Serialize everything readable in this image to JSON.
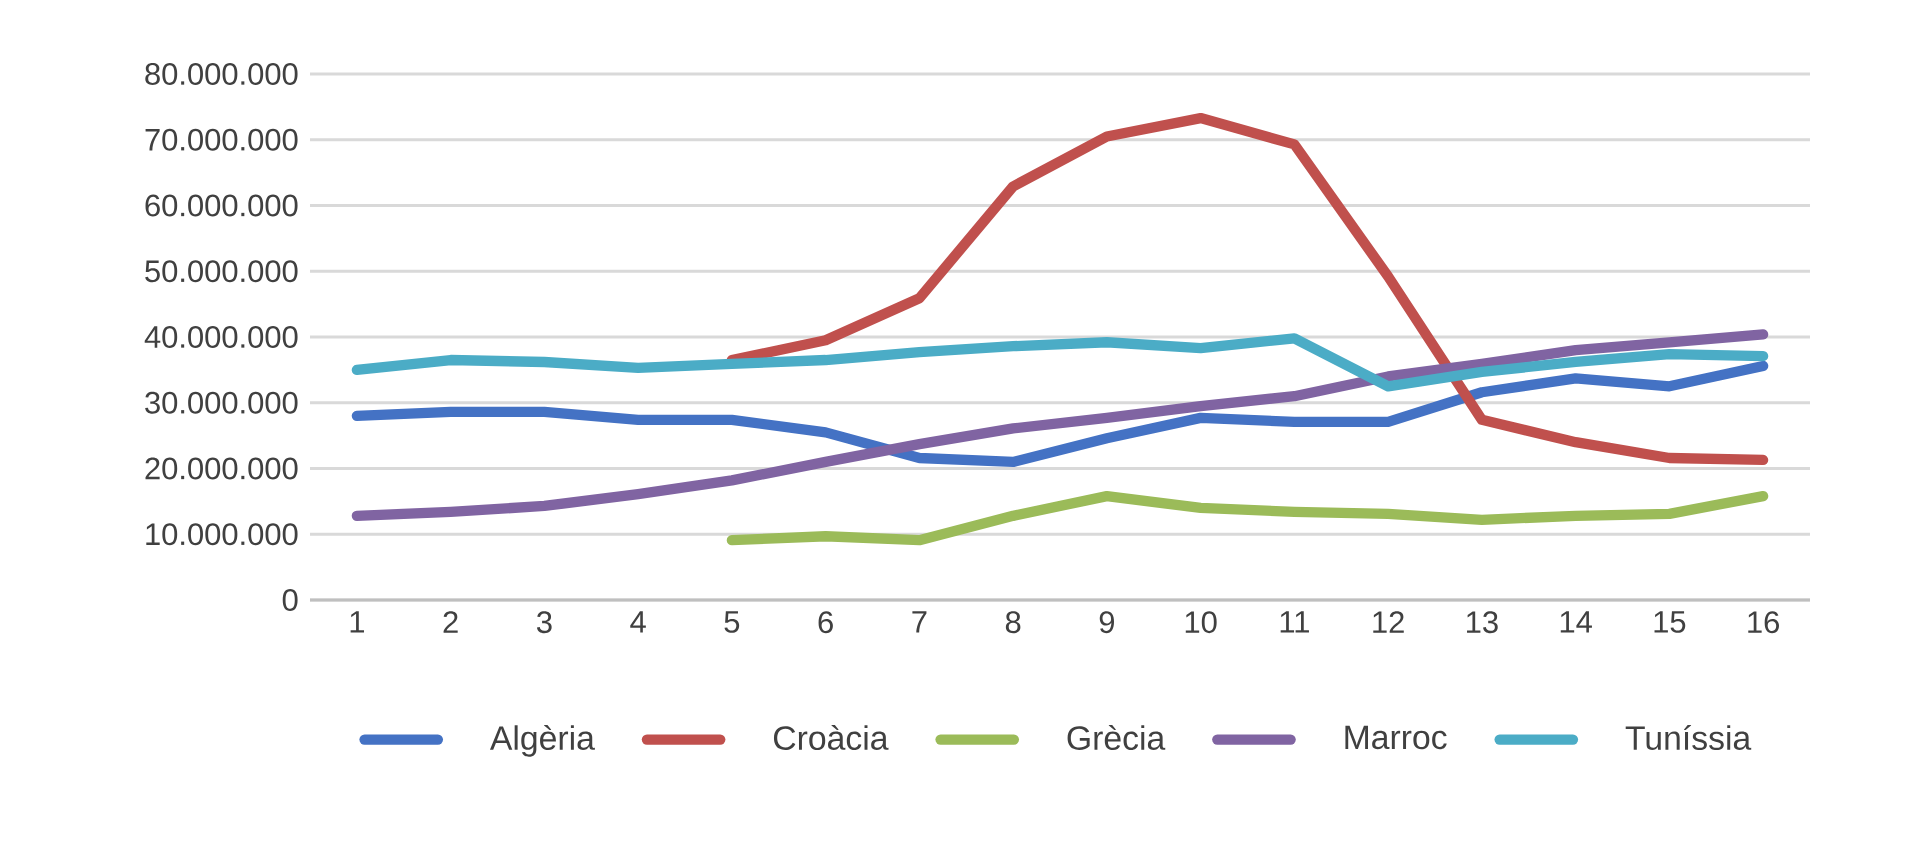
{
  "chart_data": {
    "type": "line",
    "categories": [
      "1",
      "2",
      "3",
      "4",
      "5",
      "6",
      "7",
      "8",
      "9",
      "10",
      "11",
      "12",
      "13",
      "14",
      "15",
      "16"
    ],
    "series": [
      {
        "name": "Algèria",
        "color": "#4472c4",
        "values": [
          28000000,
          28600000,
          28600000,
          27400000,
          27400000,
          25500000,
          21600000,
          21000000,
          24600000,
          27700000,
          27100000,
          27100000,
          31600000,
          33700000,
          32500000,
          35600000
        ]
      },
      {
        "name": "Croàcia",
        "color": "#c0504d",
        "values": [
          null,
          null,
          null,
          null,
          36500000,
          39500000,
          45900000,
          62900000,
          70500000,
          73300000,
          69300000,
          49200000,
          27400000,
          24000000,
          21600000,
          21300000
        ]
      },
      {
        "name": "Grècia",
        "color": "#9bbb59",
        "values": [
          null,
          null,
          null,
          null,
          9100000,
          9700000,
          9100000,
          12800000,
          15800000,
          14000000,
          13400000,
          13100000,
          12200000,
          12800000,
          13100000,
          15800000
        ]
      },
      {
        "name": "Marroc",
        "color": "#8064a2",
        "values": [
          12800000,
          13400000,
          14300000,
          16100000,
          18200000,
          21000000,
          23700000,
          26100000,
          27700000,
          29500000,
          31000000,
          34000000,
          35900000,
          38000000,
          39200000,
          40400000
        ]
      },
      {
        "name": "Tuníssia",
        "color": "#4bacc6",
        "values": [
          35000000,
          36500000,
          36200000,
          35300000,
          35900000,
          36500000,
          37700000,
          38600000,
          39200000,
          38300000,
          39800000,
          32500000,
          34700000,
          36200000,
          37400000,
          37100000
        ]
      }
    ],
    "ylim": [
      0,
      80000000
    ],
    "yticks": [
      {
        "value": 0,
        "label": "0"
      },
      {
        "value": 10000000,
        "label": "10.000.000"
      },
      {
        "value": 20000000,
        "label": "20.000.000"
      },
      {
        "value": 30000000,
        "label": "30.000.000"
      },
      {
        "value": 40000000,
        "label": "40.000.000"
      },
      {
        "value": 50000000,
        "label": "50.000.000"
      },
      {
        "value": 60000000,
        "label": "60.000.000"
      },
      {
        "value": 70000000,
        "label": "70.000.000"
      },
      {
        "value": 80000000,
        "label": "80.000.000"
      }
    ],
    "grid": "y",
    "legend": "bottom",
    "marker": "none",
    "line_style": "solid"
  }
}
